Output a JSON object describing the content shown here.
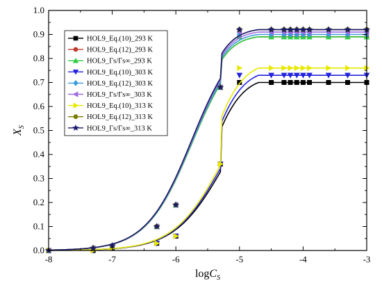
{
  "chart_data": {
    "type": "line",
    "xlabel": "log",
    "xlabel_sub": "C",
    "xlabel_subsub": "S",
    "ylabel": "X",
    "ylabel_sub": "S",
    "xlim": [
      -8,
      -3
    ],
    "ylim": [
      0.0,
      1.0
    ],
    "xticks": [
      "-8",
      "-7",
      "-6",
      "-5",
      "-4",
      "-3"
    ],
    "yticks": [
      "0.0",
      "0.1",
      "0.2",
      "0.3",
      "0.4",
      "0.5",
      "0.6",
      "0.7",
      "0.8",
      "0.9",
      "1.0"
    ],
    "legend_position": "top-left",
    "grid": false,
    "series": [
      {
        "name": "HOL9_Eq.(10)_293 K",
        "color": "#000000",
        "marker": "square",
        "plateau": 0.7,
        "midpoint": -5.25,
        "slope": 2.6,
        "x": [
          -8,
          -7.3,
          -7,
          -6.3,
          -6,
          -5.3,
          -5,
          -4.5,
          -4.3,
          -4.2,
          -4.1,
          -4.0,
          -3.9,
          -3.6,
          -3.3,
          -3.0
        ],
        "y": [
          0.0,
          0.0,
          0.01,
          0.03,
          0.06,
          0.36,
          0.7,
          0.7,
          0.7,
          0.7,
          0.7,
          0.7,
          0.7,
          0.7,
          0.7,
          0.7
        ]
      },
      {
        "name": "HOL9_Eq.(12)_293 K",
        "color": "#c0392b",
        "marker": "circle",
        "plateau": 0.89,
        "midpoint": -5.75,
        "slope": 2.8,
        "x": [
          -8,
          -7.3,
          -7,
          -6.3,
          -6,
          -5.3,
          -5,
          -4.5,
          -4.3,
          -4.2,
          -4.1,
          -4.0,
          -3.9,
          -3.6,
          -3.3,
          -3.0
        ],
        "y": [
          0.0,
          0.01,
          0.02,
          0.1,
          0.19,
          0.68,
          0.89,
          0.89,
          0.89,
          0.89,
          0.89,
          0.89,
          0.89,
          0.89,
          0.89,
          0.89
        ]
      },
      {
        "name": "HOL9_Γs/Γs∞_293 K",
        "color": "#2ecc40",
        "marker": "triangle-up",
        "plateau": 0.89,
        "midpoint": -5.75,
        "slope": 2.8,
        "x": [
          -8,
          -7.3,
          -7,
          -6.3,
          -6,
          -5.3,
          -5,
          -4.5,
          -4.3,
          -4.2,
          -4.1,
          -4.0,
          -3.9,
          -3.6,
          -3.3,
          -3.0
        ],
        "y": [
          0.0,
          0.01,
          0.02,
          0.1,
          0.19,
          0.68,
          0.89,
          0.89,
          0.89,
          0.89,
          0.89,
          0.89,
          0.89,
          0.89,
          0.89,
          0.89
        ]
      },
      {
        "name": "HOL9_Eq.(10)_303 K",
        "color": "#2222dd",
        "marker": "triangle-down",
        "plateau": 0.73,
        "midpoint": -5.25,
        "slope": 2.6,
        "x": [
          -8,
          -7.3,
          -7,
          -6.3,
          -6,
          -5.3,
          -5,
          -4.5,
          -4.3,
          -4.2,
          -4.1,
          -4.0,
          -3.9,
          -3.6,
          -3.3,
          -3.0
        ],
        "y": [
          0.0,
          0.0,
          0.01,
          0.03,
          0.06,
          0.36,
          0.73,
          0.73,
          0.73,
          0.73,
          0.73,
          0.73,
          0.73,
          0.73,
          0.73,
          0.73
        ]
      },
      {
        "name": "HOL9_Eq.(12)_303 K",
        "color": "#3a9bdc",
        "marker": "diamond",
        "plateau": 0.9,
        "midpoint": -5.75,
        "slope": 2.8,
        "x": [
          -8,
          -7.3,
          -7,
          -6.3,
          -6,
          -5.3,
          -5,
          -4.5,
          -4.3,
          -4.2,
          -4.1,
          -4.0,
          -3.9,
          -3.6,
          -3.3,
          -3.0
        ],
        "y": [
          0.0,
          0.01,
          0.02,
          0.1,
          0.19,
          0.68,
          0.9,
          0.9,
          0.9,
          0.9,
          0.9,
          0.9,
          0.9,
          0.9,
          0.9,
          0.9
        ]
      },
      {
        "name": "HOL9_Γs/Γs∞_303 K",
        "color": "#a06ae0",
        "marker": "triangle-left",
        "plateau": 0.91,
        "midpoint": -5.75,
        "slope": 2.8,
        "x": [
          -8,
          -7.3,
          -7,
          -6.3,
          -6,
          -5.3,
          -5,
          -4.5,
          -4.3,
          -4.2,
          -4.1,
          -4.0,
          -3.9,
          -3.6,
          -3.3,
          -3.0
        ],
        "y": [
          0.0,
          0.01,
          0.02,
          0.1,
          0.19,
          0.68,
          0.91,
          0.91,
          0.91,
          0.91,
          0.91,
          0.91,
          0.91,
          0.91,
          0.91,
          0.91
        ]
      },
      {
        "name": "HOL9_Eq.(10)_313 K",
        "color": "#e8e800",
        "marker": "triangle-right",
        "plateau": 0.76,
        "midpoint": -5.25,
        "slope": 2.6,
        "x": [
          -8,
          -7.3,
          -7,
          -6.3,
          -6,
          -5.3,
          -5,
          -4.5,
          -4.3,
          -4.2,
          -4.1,
          -4.0,
          -3.9,
          -3.6,
          -3.3,
          -3.0
        ],
        "y": [
          0.0,
          0.0,
          0.01,
          0.03,
          0.06,
          0.36,
          0.76,
          0.76,
          0.76,
          0.76,
          0.76,
          0.76,
          0.76,
          0.76,
          0.76,
          0.76
        ]
      },
      {
        "name": "HOL9_Eq.(12)_313 K",
        "color": "#7a7a00",
        "marker": "hexagon",
        "plateau": 0.92,
        "midpoint": -5.75,
        "slope": 2.8,
        "x": [
          -8,
          -7.3,
          -7,
          -6.3,
          -6,
          -5.3,
          -5,
          -4.5,
          -4.3,
          -4.2,
          -4.1,
          -4.0,
          -3.9,
          -3.6,
          -3.3,
          -3.0
        ],
        "y": [
          0.0,
          0.01,
          0.02,
          0.1,
          0.19,
          0.68,
          0.92,
          0.92,
          0.92,
          0.92,
          0.92,
          0.92,
          0.92,
          0.92,
          0.92,
          0.92
        ]
      },
      {
        "name": "HOL9_Γs/Γs∞_313 K",
        "color": "#1a1a6e",
        "marker": "star",
        "plateau": 0.92,
        "midpoint": -5.75,
        "slope": 2.8,
        "x": [
          -8,
          -7.3,
          -7,
          -6.3,
          -6,
          -5.3,
          -5,
          -4.5,
          -4.3,
          -4.2,
          -4.1,
          -4.0,
          -3.9,
          -3.6,
          -3.3,
          -3.0
        ],
        "y": [
          0.0,
          0.01,
          0.02,
          0.1,
          0.19,
          0.68,
          0.92,
          0.92,
          0.92,
          0.92,
          0.92,
          0.92,
          0.92,
          0.92,
          0.92,
          0.92
        ]
      }
    ]
  }
}
